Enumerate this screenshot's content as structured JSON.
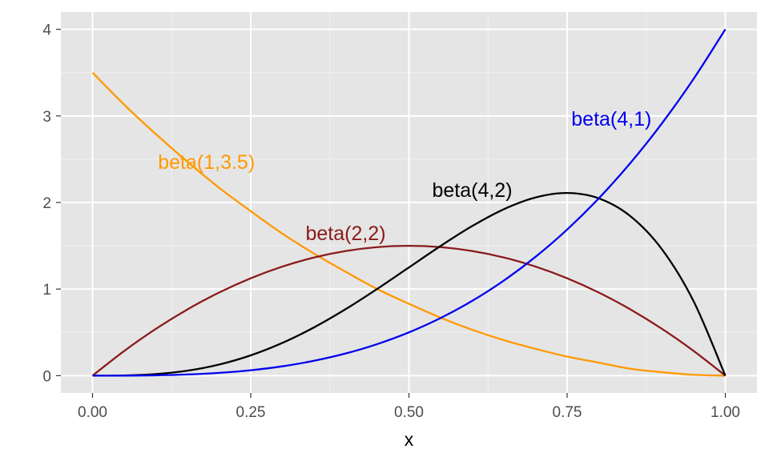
{
  "chart_data": {
    "type": "line",
    "title": "",
    "xlabel": "x",
    "ylabel": "",
    "xlim": [
      -0.05,
      1.05
    ],
    "ylim": [
      -0.2,
      4.2
    ],
    "x_ticks": [
      0,
      0.25,
      0.5,
      0.75,
      1
    ],
    "x_tick_labels": [
      "0.00",
      "0.25",
      "0.50",
      "0.75",
      "1.00"
    ],
    "y_ticks": [
      0,
      1,
      2,
      3,
      4
    ],
    "y_tick_labels": [
      "0",
      "1",
      "2",
      "3",
      "4"
    ],
    "grid": true,
    "background": "#e5e5e5",
    "x": [
      0,
      0.05,
      0.1,
      0.15,
      0.2,
      0.25,
      0.3,
      0.35,
      0.4,
      0.45,
      0.5,
      0.55,
      0.6,
      0.65,
      0.7,
      0.75,
      0.8,
      0.85,
      0.9,
      0.95,
      1
    ],
    "series": [
      {
        "name": "beta(1,3.5)",
        "color": "#ff9900",
        "values": [
          3.5,
          3.13,
          2.79,
          2.47,
          2.17,
          1.9,
          1.64,
          1.41,
          1.2,
          1.0,
          0.83,
          0.67,
          0.53,
          0.41,
          0.31,
          0.22,
          0.15,
          0.08,
          0.04,
          0.01,
          0
        ],
        "label_at": [
          0.18,
          2.47
        ]
      },
      {
        "name": "beta(2,2)",
        "color": "#8b1a1a",
        "values": [
          0,
          0.285,
          0.54,
          0.765,
          0.96,
          1.125,
          1.26,
          1.365,
          1.44,
          1.485,
          1.5,
          1.485,
          1.44,
          1.365,
          1.26,
          1.125,
          0.96,
          0.765,
          0.54,
          0.285,
          0
        ],
        "label_at": [
          0.4,
          1.65
        ]
      },
      {
        "name": "beta(4,2)",
        "color": "#000000",
        "values": [
          0,
          0.0024,
          0.018,
          0.0574,
          0.128,
          0.2344,
          0.378,
          0.5573,
          0.768,
          1.0023,
          1.25,
          1.4974,
          1.728,
          1.9224,
          2.058,
          2.1094,
          2.048,
          1.842,
          1.458,
          0.8574,
          0
        ],
        "label_at": [
          0.6,
          2.15
        ]
      },
      {
        "name": "beta(4,1)",
        "color": "#0000ee",
        "values": [
          0,
          0.0005,
          0.004,
          0.0135,
          0.032,
          0.0625,
          0.108,
          0.1715,
          0.256,
          0.3645,
          0.5,
          0.6655,
          0.864,
          1.0985,
          1.372,
          1.6875,
          2.048,
          2.4565,
          2.916,
          3.4295,
          4
        ],
        "label_at": [
          0.82,
          2.97
        ]
      }
    ]
  }
}
